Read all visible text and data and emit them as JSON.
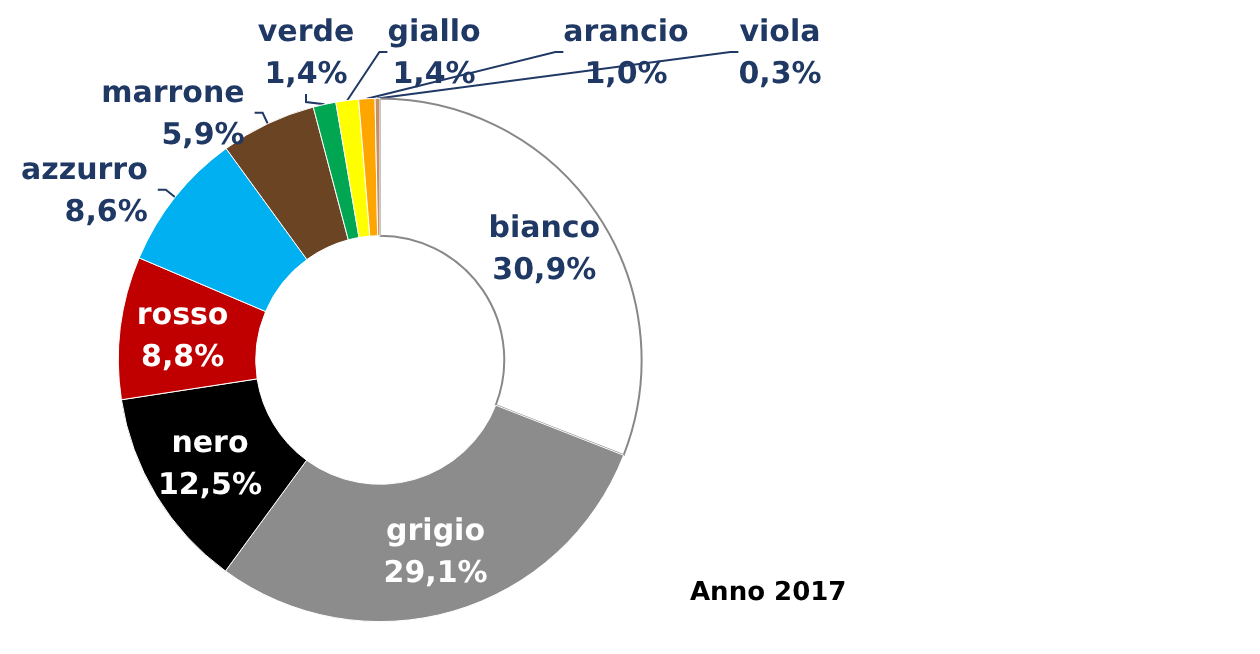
{
  "chart_data": {
    "type": "donut",
    "categories": [
      "bianco",
      "grigio",
      "nero",
      "rosso",
      "azzurro",
      "marrone",
      "verde",
      "giallo",
      "arancio",
      "viola"
    ],
    "values": [
      30.9,
      29.1,
      12.5,
      8.8,
      8.6,
      5.9,
      1.4,
      1.4,
      1.0,
      0.3
    ],
    "value_labels": [
      "30,9%",
      "29,1%",
      "12,5%",
      "8,8%",
      "8,6%",
      "5,9%",
      "1,4%",
      "1,4%",
      "1,0%",
      "0,3%"
    ],
    "colors": [
      "#ffffff",
      "#8c8c8c",
      "#000000",
      "#c00000",
      "#00b0f0",
      "#6b4423",
      "#00a651",
      "#ffff00",
      "#ffa500",
      "#c4906a"
    ],
    "annotations": [
      "Anno 2017"
    ],
    "legend": false
  }
}
